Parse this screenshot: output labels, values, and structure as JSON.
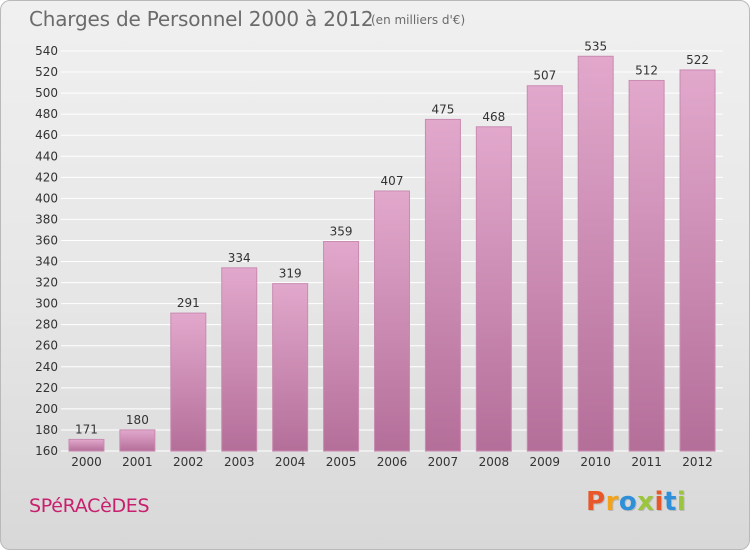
{
  "header": {
    "title": "Charges de Personnel 2000 à 2012",
    "subtitle": "(en milliers d'€)"
  },
  "footer": {
    "commune": "SPéRACèDES",
    "brand": {
      "letters": [
        "P",
        "r",
        "o",
        "x",
        "i",
        "t",
        "i"
      ],
      "colors": [
        "#e8572a",
        "#f2a31b",
        "#2f8fd8",
        "#9bc53d",
        "#e8572a",
        "#2f8fd8",
        "#9bc53d"
      ]
    }
  },
  "colors": {
    "bar_fill_top": "#e2a8cc",
    "bar_fill_bottom": "#b46f99",
    "bar_stroke": "#c98bb1",
    "grid": "#ffffff",
    "axis_text": "#333333"
  },
  "chart_data": {
    "type": "bar",
    "categories": [
      "2000",
      "2001",
      "2002",
      "2003",
      "2004",
      "2005",
      "2006",
      "2007",
      "2008",
      "2009",
      "2010",
      "2011",
      "2012"
    ],
    "values": [
      171,
      180,
      291,
      334,
      319,
      359,
      407,
      475,
      468,
      507,
      535,
      512,
      522
    ],
    "data_labels": [
      "171",
      "180",
      "291",
      "334",
      "319",
      "359",
      "407",
      "475",
      "468",
      "507",
      "535",
      "512",
      "522"
    ],
    "ylim": [
      160,
      540
    ],
    "yticks": [
      160,
      180,
      200,
      220,
      240,
      260,
      280,
      300,
      320,
      340,
      360,
      380,
      400,
      420,
      440,
      460,
      480,
      500,
      520,
      540
    ],
    "grid": true,
    "xlabel": "",
    "ylabel": ""
  }
}
